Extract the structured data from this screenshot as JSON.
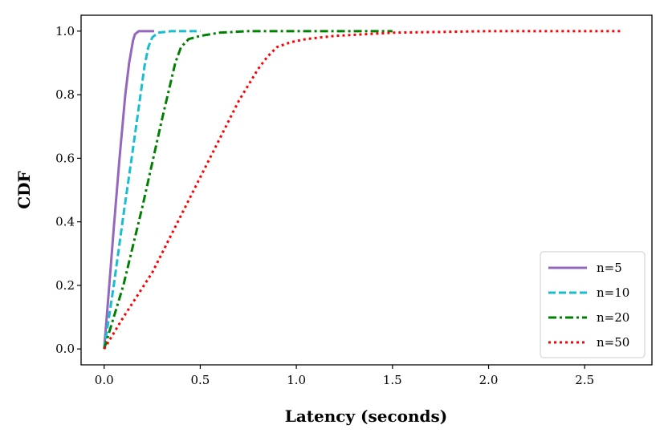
{
  "chart_data": {
    "type": "line",
    "xlabel": "Latency (seconds)",
    "ylabel": "CDF",
    "xlim": [
      -0.12,
      2.85
    ],
    "ylim": [
      -0.05,
      1.05
    ],
    "xticks": [
      0.0,
      0.5,
      1.0,
      1.5,
      2.0,
      2.5
    ],
    "xtick_labels": [
      "0.0",
      "0.5",
      "1.0",
      "1.5",
      "2.0",
      "2.5"
    ],
    "yticks": [
      0.0,
      0.2,
      0.4,
      0.6,
      0.8,
      1.0
    ],
    "ytick_labels": [
      "0.0",
      "0.2",
      "0.4",
      "0.6",
      "0.8",
      "1.0"
    ],
    "grid": false,
    "legend_position": "lower-right",
    "series": [
      {
        "name": "n=5",
        "color": "#9467bd",
        "dash": "solid",
        "x": [
          0.0,
          0.02,
          0.05,
          0.08,
          0.11,
          0.13,
          0.15,
          0.16,
          0.18,
          0.2,
          0.22,
          0.26
        ],
        "y": [
          0.0,
          0.15,
          0.38,
          0.6,
          0.8,
          0.9,
          0.97,
          0.99,
          1.0,
          1.0,
          1.0,
          1.0
        ]
      },
      {
        "name": "n=10",
        "color": "#17becf",
        "dash": "dashed",
        "x": [
          0.0,
          0.05,
          0.1,
          0.15,
          0.18,
          0.21,
          0.23,
          0.25,
          0.28,
          0.35,
          0.45,
          0.5
        ],
        "y": [
          0.0,
          0.2,
          0.42,
          0.63,
          0.76,
          0.89,
          0.95,
          0.98,
          0.995,
          1.0,
          1.0,
          1.0
        ]
      },
      {
        "name": "n=20",
        "color": "#008000",
        "dash": "dashdot",
        "x": [
          0.0,
          0.05,
          0.1,
          0.2,
          0.3,
          0.37,
          0.4,
          0.44,
          0.5,
          0.6,
          0.75,
          1.0,
          1.25,
          1.5
        ],
        "y": [
          0.0,
          0.1,
          0.2,
          0.45,
          0.72,
          0.9,
          0.95,
          0.975,
          0.985,
          0.995,
          1.0,
          1.0,
          1.0,
          1.0
        ]
      },
      {
        "name": "n=50",
        "color": "#ff0000",
        "dash": "dotted",
        "x": [
          0.0,
          0.1,
          0.25,
          0.4,
          0.55,
          0.7,
          0.8,
          0.85,
          0.9,
          0.97,
          1.05,
          1.2,
          1.5,
          2.0,
          2.5,
          2.7
        ],
        "y": [
          0.0,
          0.1,
          0.24,
          0.42,
          0.6,
          0.78,
          0.88,
          0.92,
          0.95,
          0.965,
          0.975,
          0.985,
          0.995,
          1.0,
          1.0,
          1.0
        ]
      }
    ]
  }
}
